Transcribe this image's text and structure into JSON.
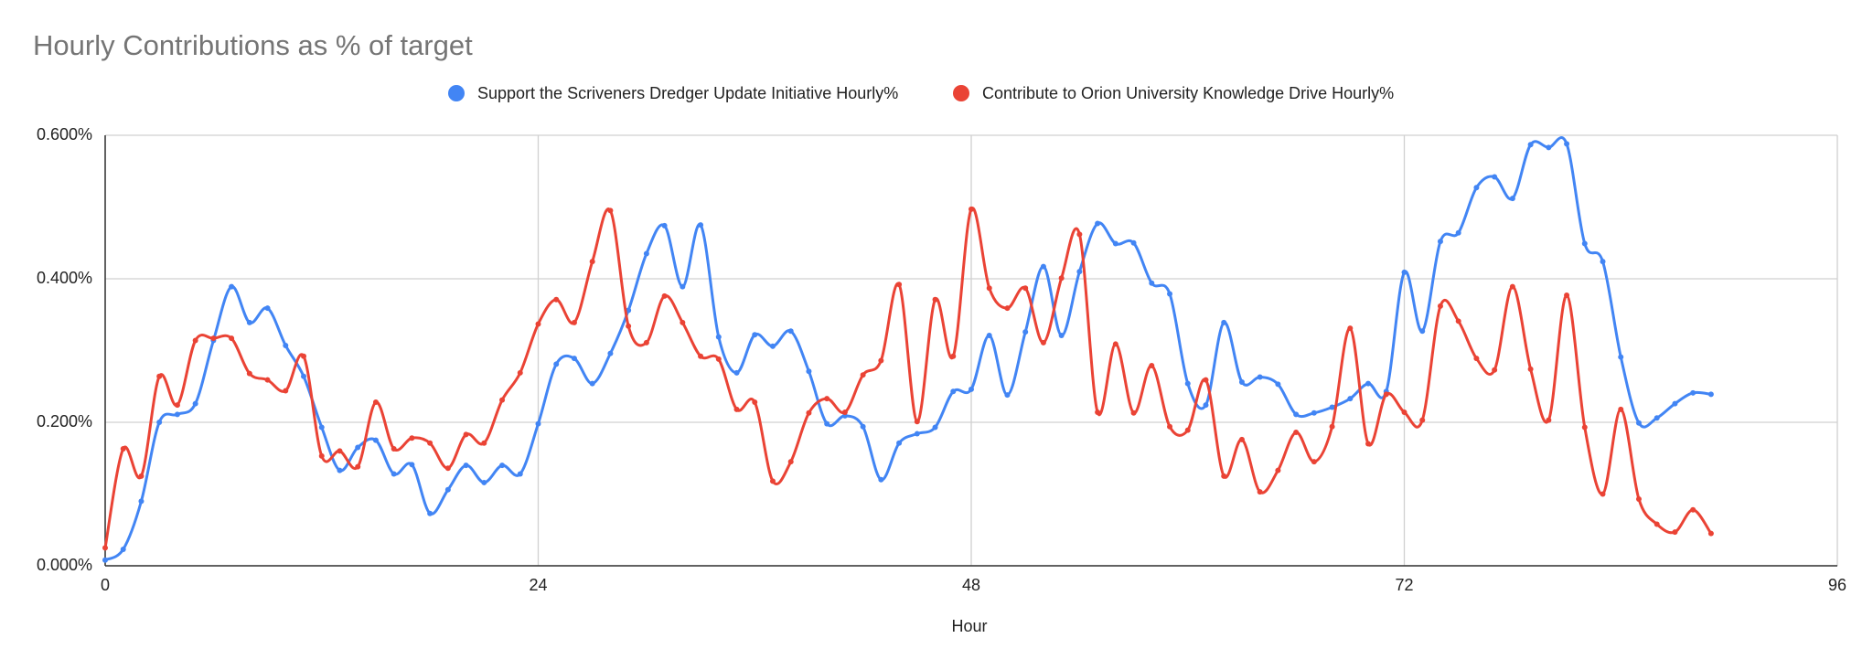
{
  "chart_data": {
    "type": "line",
    "title": "Hourly Contributions as % of target",
    "x_label": "Hour",
    "x": [
      0,
      1,
      2,
      3,
      4,
      5,
      6,
      7,
      8,
      9,
      10,
      11,
      12,
      13,
      14,
      15,
      16,
      17,
      18,
      19,
      20,
      21,
      22,
      23,
      24,
      25,
      26,
      27,
      28,
      29,
      30,
      31,
      32,
      33,
      34,
      35,
      36,
      37,
      38,
      39,
      40,
      41,
      42,
      43,
      44,
      45,
      46,
      47,
      48,
      49,
      50,
      51,
      52,
      53,
      54,
      55,
      56,
      57,
      58,
      59,
      60,
      61,
      62,
      63,
      64,
      65,
      66,
      67,
      68,
      69,
      70,
      71,
      72,
      73,
      74,
      75,
      76,
      77,
      78,
      79,
      80,
      81,
      82,
      83,
      84,
      85,
      86,
      87,
      88,
      89
    ],
    "series": [
      {
        "name": "Support the Scriveners Dredger Update Initiative Hourly%",
        "color": "#4285f4",
        "values": [
          0.008,
          0.023,
          0.09,
          0.2,
          0.211,
          0.226,
          0.314,
          0.389,
          0.339,
          0.359,
          0.307,
          0.264,
          0.193,
          0.133,
          0.165,
          0.175,
          0.128,
          0.141,
          0.073,
          0.106,
          0.14,
          0.116,
          0.14,
          0.128,
          0.198,
          0.281,
          0.289,
          0.254,
          0.296,
          0.356,
          0.435,
          0.474,
          0.389,
          0.475,
          0.319,
          0.269,
          0.322,
          0.306,
          0.327,
          0.271,
          0.198,
          0.209,
          0.194,
          0.12,
          0.171,
          0.184,
          0.193,
          0.243,
          0.246,
          0.321,
          0.238,
          0.326,
          0.417,
          0.321,
          0.41,
          0.477,
          0.449,
          0.45,
          0.394,
          0.379,
          0.254,
          0.224,
          0.339,
          0.256,
          0.263,
          0.253,
          0.211,
          0.213,
          0.221,
          0.233,
          0.254,
          0.243,
          0.409,
          0.327,
          0.452,
          0.464,
          0.527,
          0.542,
          0.512,
          0.587,
          0.583,
          0.588,
          0.449,
          0.424,
          0.291,
          0.199,
          0.206,
          0.226,
          0.241,
          0.239
        ]
      },
      {
        "name": "Contribute to Orion University Knowledge Drive Hourly%",
        "color": "#ea4335",
        "values": [
          0.025,
          0.163,
          0.125,
          0.264,
          0.224,
          0.314,
          0.317,
          0.317,
          0.268,
          0.259,
          0.244,
          0.292,
          0.153,
          0.16,
          0.138,
          0.228,
          0.163,
          0.178,
          0.171,
          0.136,
          0.183,
          0.171,
          0.231,
          0.269,
          0.337,
          0.371,
          0.339,
          0.424,
          0.495,
          0.334,
          0.311,
          0.376,
          0.339,
          0.292,
          0.288,
          0.218,
          0.228,
          0.118,
          0.145,
          0.213,
          0.233,
          0.214,
          0.266,
          0.286,
          0.392,
          0.201,
          0.371,
          0.292,
          0.497,
          0.387,
          0.359,
          0.387,
          0.311,
          0.401,
          0.462,
          0.214,
          0.309,
          0.213,
          0.279,
          0.194,
          0.189,
          0.259,
          0.125,
          0.176,
          0.103,
          0.133,
          0.186,
          0.145,
          0.194,
          0.331,
          0.17,
          0.239,
          0.214,
          0.203,
          0.362,
          0.341,
          0.289,
          0.273,
          0.389,
          0.274,
          0.203,
          0.377,
          0.193,
          0.1,
          0.218,
          0.093,
          0.058,
          0.047,
          0.078,
          0.045
        ]
      }
    ],
    "xlim": [
      0,
      96
    ],
    "xticks": [
      0,
      24,
      48,
      72,
      96
    ],
    "ylim": [
      0,
      0.6
    ],
    "yticks": [
      {
        "value": 0,
        "label": "0.000%"
      },
      {
        "value": 0.2,
        "label": "0.200%"
      },
      {
        "value": 0.4,
        "label": "0.400%"
      },
      {
        "value": 0.6,
        "label": "0.600%"
      }
    ],
    "grid": true,
    "legend": "top"
  }
}
